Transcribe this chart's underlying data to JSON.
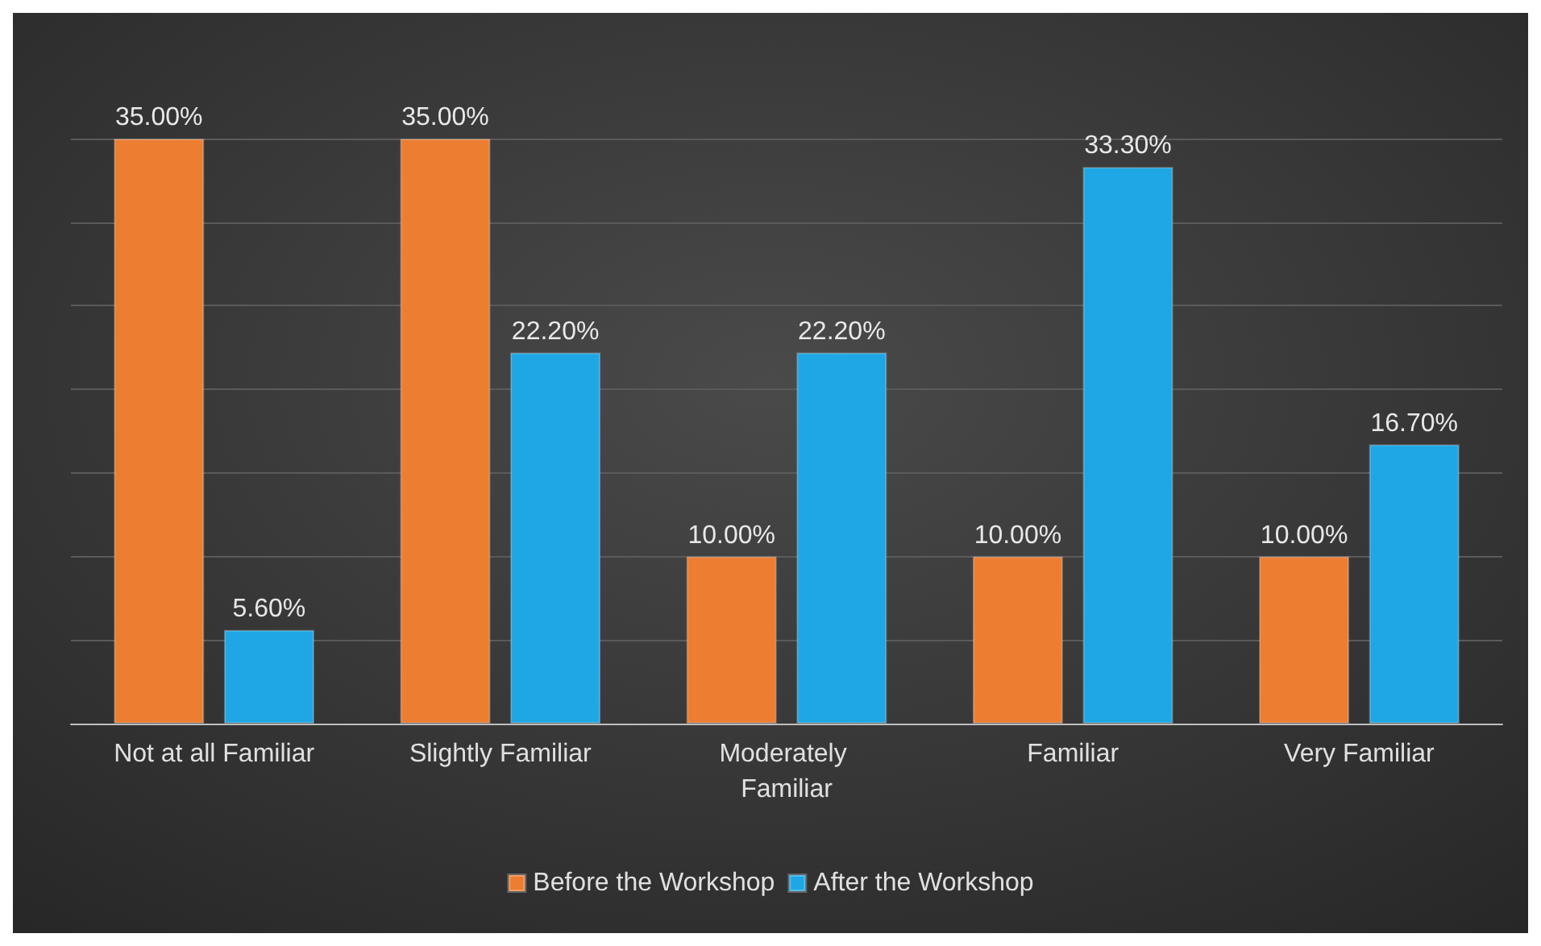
{
  "chart_data": {
    "type": "bar",
    "categories": [
      "Not at all Familiar",
      "Slightly Familiar",
      "Moderately Familiar",
      "Familiar",
      "Very Familiar"
    ],
    "series": [
      {
        "name": "Before the Workshop",
        "color": "#ed7d31",
        "values": [
          35,
          35,
          10,
          10,
          10
        ],
        "value_labels": [
          "35.00%",
          "35.00%",
          "10.00%",
          "10.00%",
          "10.00%"
        ]
      },
      {
        "name": "After the Workshop",
        "color": "#1ea7e4",
        "values": [
          5.6,
          22.2,
          22.2,
          33.3,
          16.7
        ],
        "value_labels": [
          "5.60%",
          "22.20%",
          "22.20%",
          "33.30%",
          "16.70%"
        ]
      }
    ],
    "ylim": [
      0,
      35
    ],
    "yticks": [
      {
        "value": 0,
        "label": null
      },
      {
        "value": 5,
        "label": null
      },
      {
        "value": 10,
        "label": null
      },
      {
        "value": 15,
        "label": null
      },
      {
        "value": 20,
        "label": null
      },
      {
        "value": 25,
        "label": null
      },
      {
        "value": 30,
        "label": null
      },
      {
        "value": 35,
        "label": null
      }
    ],
    "tick_labels": "x",
    "grid": "y",
    "legend": "bottom"
  }
}
